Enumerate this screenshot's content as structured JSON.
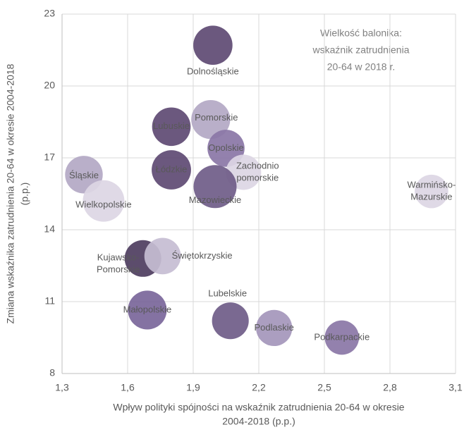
{
  "chart_data": {
    "type": "bubble",
    "x_label": [
      "Wpływ polityki spójności na wskaźnik zatrudnienia 20-64 w okresie",
      "2004-2018 (p.p.)"
    ],
    "y_label": [
      "Zmiana wskaźnika zatrudnienia 20-64 w okresie 2004-2018",
      "(p.p.)"
    ],
    "annotation": [
      "Wielkość balonika:",
      "wskaźnik zatrudnienia",
      "20-64 w 2018 r."
    ],
    "xlim": [
      1.3,
      3.1
    ],
    "xticks": [
      {
        "value": 1.3,
        "label": "1,3"
      },
      {
        "value": 1.6,
        "label": "1,6"
      },
      {
        "value": 1.9,
        "label": "1,9"
      },
      {
        "value": 2.2,
        "label": "2,2"
      },
      {
        "value": 2.5,
        "label": "2,5"
      },
      {
        "value": 2.8,
        "label": "2,8"
      },
      {
        "value": 3.1,
        "label": "3,1"
      }
    ],
    "ylim": [
      8,
      23
    ],
    "yticks": [
      8,
      11,
      14,
      17,
      20,
      23
    ],
    "grid": true,
    "labels": [
      [
        "Dolnośląskie"
      ],
      [
        "Pomorskie"
      ],
      [
        "Lubuskie"
      ],
      [
        "Opolskie"
      ],
      [
        "Łódzkie"
      ],
      [
        "Zachodnio",
        "pomorskie"
      ],
      [
        "Mazowieckie"
      ],
      [
        "Śląskie"
      ],
      [
        "Wielkopolskie"
      ],
      [
        "Warmińsko-",
        "Mazurskie"
      ],
      [
        "Kujawsko-",
        "Pomorskie"
      ],
      [
        "Świętokrzyskie"
      ],
      [
        "Małopolskie"
      ],
      [
        "Lubelskie"
      ],
      [
        "Podlaskie"
      ],
      [
        "Podkarpackie"
      ]
    ],
    "x": [
      1.99,
      1.98,
      1.8,
      2.05,
      1.8,
      2.13,
      2.0,
      1.4,
      1.49,
      2.99,
      1.67,
      1.76,
      1.69,
      2.07,
      2.27,
      2.58
    ],
    "values": [
      21.7,
      18.6,
      18.3,
      17.4,
      16.5,
      16.4,
      15.8,
      16.3,
      15.2,
      15.6,
      12.8,
      12.9,
      10.65,
      10.2,
      9.9,
      9.5
    ],
    "sizes": [
      73.0,
      72.7,
      72.2,
      70.5,
      73.2,
      68.4,
      77.5,
      71.2,
      75.8,
      66.3,
      70.0,
      69.8,
      72.6,
      70.1,
      69.4,
      67.2
    ],
    "colors": [
      "#5e4a73",
      "#b3a8c4",
      "#5e4a73",
      "#8a76a6",
      "#5e4a73",
      "#dcd6e4",
      "#6f5c88",
      "#b3a8c4",
      "#dcd6e4",
      "#dcd6e4",
      "#4e3d60",
      "#c6bdd3",
      "#7a669a",
      "#6f5c88",
      "#a496bb",
      "#8a76a6"
    ]
  }
}
